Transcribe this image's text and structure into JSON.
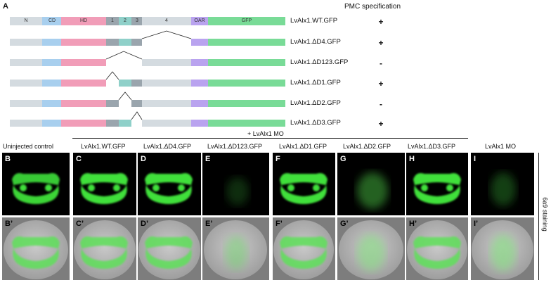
{
  "figure": {
    "panel_a_label": "A",
    "pmc_header": "PMC specification",
    "domain_labels": [
      "N",
      "CD",
      "HD",
      "1",
      "2",
      "3",
      "4",
      "OAR",
      "GFP"
    ],
    "constructs": [
      {
        "name": "LvAlx1.WT.GFP",
        "pmc": "+"
      },
      {
        "name": "LvAlx1.ΔD4.GFP",
        "pmc": "+"
      },
      {
        "name": "LvAlx1.ΔD123.GFP",
        "pmc": "-"
      },
      {
        "name": "LvAlx1.ΔD1.GFP",
        "pmc": "+"
      },
      {
        "name": "LvAlx1.ΔD2.GFP",
        "pmc": "-"
      },
      {
        "name": "LvAlx1.ΔD3.GFP",
        "pmc": "+"
      }
    ],
    "mo_bracket_label": "+ LvAlx1 MO",
    "column_titles": [
      "Uninjected control",
      "LvAlx1.WT.GFP",
      "LvAlx1.ΔD4.GFP",
      "LvAlx1.ΔD123.GFP",
      "LvAlx1.ΔD1.GFP",
      "LvAlx1.ΔD2.GFP",
      "LvAlx1.ΔD3.GFP",
      "LvAlx1 MO"
    ],
    "top_row_labels": [
      "B",
      "C",
      "D",
      "E",
      "F",
      "G",
      "H",
      "I"
    ],
    "bottom_row_labels": [
      "B’",
      "C’",
      "D’",
      "E’",
      "F’",
      "G’",
      "H’",
      "I’"
    ],
    "staining_label": "6a9 staining",
    "colors": {
      "N": "#d4dbe0",
      "CD": "#a8cfee",
      "HD": "#f19db8",
      "D1": "#9aa5ad",
      "D2": "#8fd0c9",
      "D3": "#9aa5ad",
      "D4": "#d4dbe0",
      "OAR": "#b9a3ef",
      "GFP": "#79db97",
      "stain": "#3fe03a"
    }
  }
}
